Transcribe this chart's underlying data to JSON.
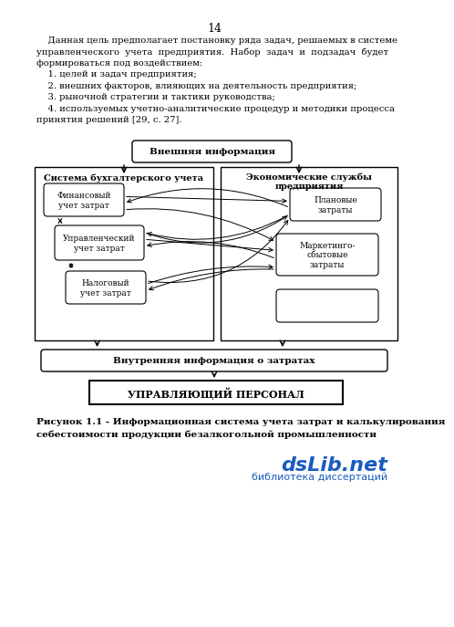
{
  "page_number": "14",
  "bg_color": "#ffffff",
  "box_color": "#000000",
  "text_color": "#000000",
  "caption_line1": "Рисунок 1.1 - Информационная система учета затрат и калькулирования",
  "caption_line2": "себестоимости продукции безалкогольной промышленности",
  "watermark_line1": "dsLib.net",
  "watermark_line2": "библиотека диссертаций"
}
